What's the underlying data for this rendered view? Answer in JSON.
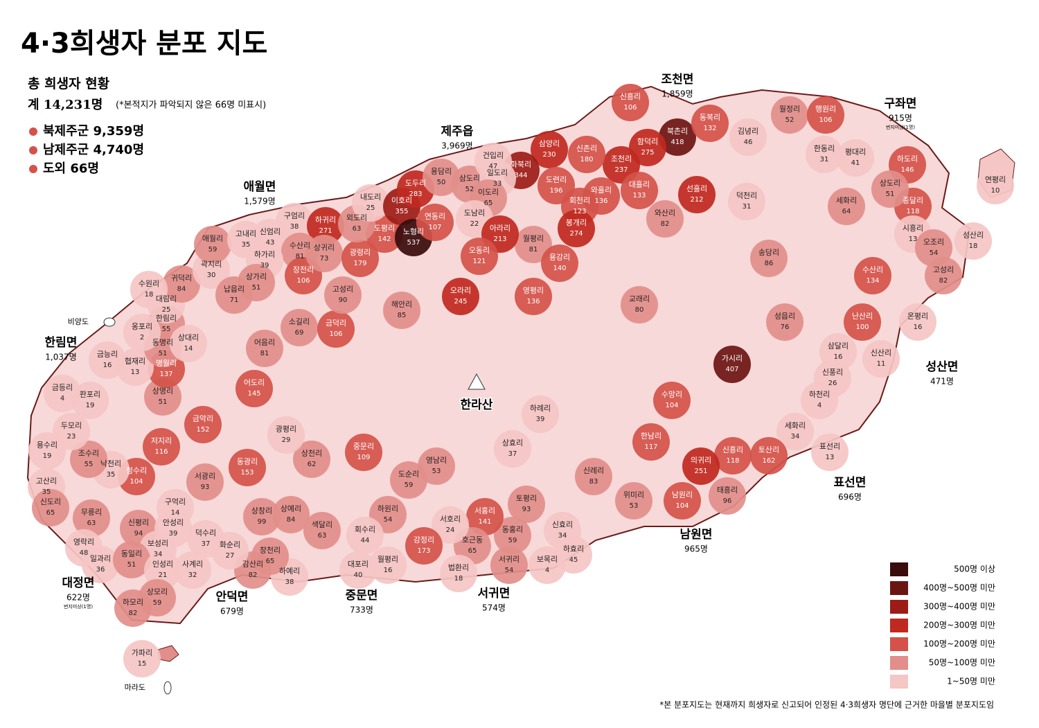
{
  "title": "4·3희생자 분포 지도",
  "summary": {
    "heading": "총 희생자 현황",
    "total": "계 14,231명",
    "note": "(*본적지가 파악되지 않은 66명 미표시)",
    "items": [
      "북제주군 9,359명",
      "남제주군 4,740명",
      "도외 66명"
    ]
  },
  "mountain": "한라산",
  "districts": [
    {
      "name": "조천면",
      "count": "1,859명"
    },
    {
      "name": "제주읍",
      "count": "3,969명"
    },
    {
      "name": "애월면",
      "count": "1,579명"
    },
    {
      "name": "한림면",
      "count": "1,037명"
    },
    {
      "name": "구좌면",
      "count": "915명",
      "note": "번지미상(1명)"
    },
    {
      "name": "성산면",
      "count": "471명"
    },
    {
      "name": "표선면",
      "count": "696명"
    },
    {
      "name": "남원면",
      "count": "965명"
    },
    {
      "name": "서귀면",
      "count": "574명"
    },
    {
      "name": "중문면",
      "count": "733명"
    },
    {
      "name": "안덕면",
      "count": "679명"
    },
    {
      "name": "대정면",
      "count": "622명",
      "note": "번지미상(1명)"
    }
  ],
  "villages": [
    [
      "신흥리",
      106
    ],
    [
      "북촌리",
      418
    ],
    [
      "동복리",
      132
    ],
    [
      "월정리",
      52
    ],
    [
      "행원리",
      106
    ],
    [
      "김녕리",
      46
    ],
    [
      "한동리",
      31
    ],
    [
      "평대리",
      41
    ],
    [
      "하도리",
      146
    ],
    [
      "종달리",
      118
    ],
    [
      "상도리",
      51
    ],
    [
      "세화리",
      64
    ],
    [
      "덕천리",
      31
    ],
    [
      "선흘리",
      212
    ],
    [
      "함덕리",
      275
    ],
    [
      "조천리",
      237
    ],
    [
      "신촌리",
      180
    ],
    [
      "대흘리",
      133
    ],
    [
      "와흘리",
      136
    ],
    [
      "와산리",
      82
    ],
    [
      "삼양리",
      230
    ],
    [
      "화북리",
      344
    ],
    [
      "도련리",
      196
    ],
    [
      "회천리",
      123
    ],
    [
      "봉개리",
      274
    ],
    [
      "월평리",
      81
    ],
    [
      "용강리",
      140
    ],
    [
      "영평리",
      136
    ],
    [
      "교래리",
      80
    ],
    [
      "송당리",
      86
    ],
    [
      "수산리",
      134
    ],
    [
      "시흥리",
      13
    ],
    [
      "오조리",
      54
    ],
    [
      "성산리",
      18
    ],
    [
      "고성리",
      82
    ],
    [
      "난산리",
      100
    ],
    [
      "온평리",
      16
    ],
    [
      "성읍리",
      76
    ],
    [
      "가시리",
      407
    ],
    [
      "삼달리",
      16
    ],
    [
      "신산리",
      11
    ],
    [
      "신풍리",
      26
    ],
    [
      "하천리",
      4
    ],
    [
      "세화리",
      34
    ],
    [
      "표선리",
      13
    ],
    [
      "토산리",
      162
    ],
    [
      "신흥리",
      118
    ],
    [
      "의귀리",
      251
    ],
    [
      "태흥리",
      96
    ],
    [
      "남원리",
      104
    ],
    [
      "한남리",
      117
    ],
    [
      "수망리",
      104
    ],
    [
      "위미리",
      53
    ],
    [
      "신례리",
      83
    ],
    [
      "하례리",
      39
    ],
    [
      "상효리",
      37
    ],
    [
      "토평리",
      93
    ],
    [
      "신효리",
      34
    ],
    [
      "하효리",
      45
    ],
    [
      "보목리",
      4
    ],
    [
      "동홍리",
      59
    ],
    [
      "서귀리",
      54
    ],
    [
      "서홍리",
      141
    ],
    [
      "호근동",
      65
    ],
    [
      "서호리",
      24
    ],
    [
      "법환리",
      18
    ],
    [
      "강정리",
      173
    ],
    [
      "영남리",
      53
    ],
    [
      "도순리",
      59
    ],
    [
      "하원리",
      54
    ],
    [
      "회수리",
      44
    ],
    [
      "대포리",
      40
    ],
    [
      "월평리",
      16
    ],
    [
      "중문리",
      109
    ],
    [
      "상천리",
      62
    ],
    [
      "상예리",
      84
    ],
    [
      "색달리",
      63
    ],
    [
      "하예리",
      38
    ],
    [
      "창천리",
      65
    ],
    [
      "감산리",
      82
    ],
    [
      "화순리",
      27
    ],
    [
      "사계리",
      32
    ],
    [
      "덕수리",
      37
    ],
    [
      "상창리",
      99
    ],
    [
      "동광리",
      153
    ],
    [
      "서광리",
      93
    ],
    [
      "광평리",
      29
    ],
    [
      "금악리",
      152
    ],
    [
      "저지리",
      116
    ],
    [
      "청수리",
      104
    ],
    [
      "낙천리",
      35
    ],
    [
      "조수리",
      55
    ],
    [
      "두모리",
      23
    ],
    [
      "용수리",
      19
    ],
    [
      "고산리",
      35
    ],
    [
      "신도리",
      65
    ],
    [
      "무릉리",
      63
    ],
    [
      "영락리",
      48
    ],
    [
      "일과리",
      36
    ],
    [
      "신평리",
      94
    ],
    [
      "구억리",
      14
    ],
    [
      "안성리",
      39
    ],
    [
      "보성리",
      34
    ],
    [
      "동일리",
      51
    ],
    [
      "인성리",
      21
    ],
    [
      "상모리",
      59
    ],
    [
      "하모리",
      82
    ],
    [
      "판포리",
      19
    ],
    [
      "금등리",
      4
    ],
    [
      "상명리",
      51
    ],
    [
      "명월리",
      137
    ],
    [
      "협재리",
      13
    ],
    [
      "금능리",
      16
    ],
    [
      "동명리",
      51
    ],
    [
      "한림리",
      55
    ],
    [
      "옹포리",
      2
    ],
    [
      "대림리",
      25
    ],
    [
      "귀덕리",
      84
    ],
    [
      "수원리",
      18
    ],
    [
      "상대리",
      14
    ],
    [
      "곽지리",
      30
    ],
    [
      "애월리",
      59
    ],
    [
      "고내리",
      35
    ],
    [
      "신엄리",
      43
    ],
    [
      "구엄리",
      38
    ],
    [
      "하귀리",
      271
    ],
    [
      "수산리",
      81
    ],
    [
      "하가리",
      39
    ],
    [
      "상가리",
      51
    ],
    [
      "납읍리",
      71
    ],
    [
      "장전리",
      106
    ],
    [
      "상귀리",
      73
    ],
    [
      "소길리",
      69
    ],
    [
      "어음리",
      81
    ],
    [
      "어도리",
      145
    ],
    [
      "금덕리",
      106
    ],
    [
      "고성리",
      90
    ],
    [
      "광령리",
      179
    ],
    [
      "도평리",
      142
    ],
    [
      "외도리",
      63
    ],
    [
      "내도리",
      25
    ],
    [
      "이호리",
      355
    ],
    [
      "도두리",
      283
    ],
    [
      "노형리",
      537
    ],
    [
      "연동리",
      107
    ],
    [
      "용담리",
      50
    ],
    [
      "삼도리",
      52
    ],
    [
      "건입리",
      47
    ],
    [
      "일도리",
      33
    ],
    [
      "이도리",
      65
    ],
    [
      "도남리",
      22
    ],
    [
      "아라리",
      213
    ],
    [
      "오동리",
      121
    ],
    [
      "오라리",
      245
    ],
    [
      "해안리",
      85
    ],
    [
      "연평리",
      10
    ],
    [
      "가파리",
      15
    ]
  ],
  "islands": [
    "비양도",
    "마라도"
  ],
  "legend": [
    {
      "label": "500명 이상",
      "min": 500,
      "color": "#3a0c0c"
    },
    {
      "label": "400명~500명 미만",
      "min": 400,
      "color": "#6b1512"
    },
    {
      "label": "300명~400명 미만",
      "min": 300,
      "color": "#9c1c17"
    },
    {
      "label": "200명~300명 미만",
      "min": 200,
      "color": "#c0291f"
    },
    {
      "label": "100명~200명 미만",
      "min": 100,
      "color": "#d4524a"
    },
    {
      "label": "50명~100명 미만",
      "min": 50,
      "color": "#e28e8a"
    },
    {
      "label": "1~50명 미만",
      "min": 1,
      "color": "#f4c6c4"
    }
  ],
  "footnote": "*본 분포지도는 현재까지 희생자로 신고되어 인정된 4·3희생자 명단에 근거한 마을별 분포지도임"
}
